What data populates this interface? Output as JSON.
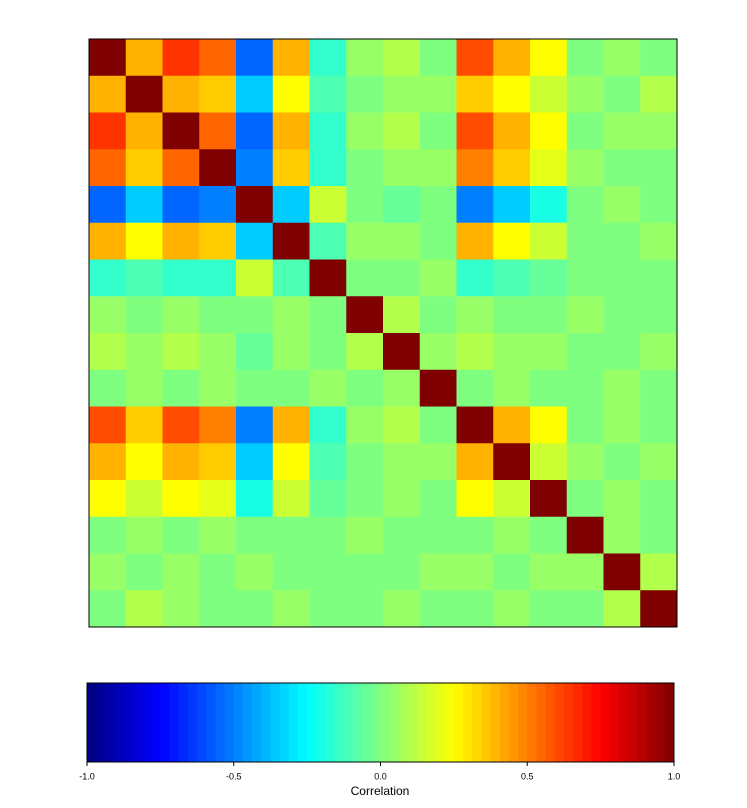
{
  "chart_data": {
    "type": "heatmap",
    "colormap": [
      "#00007f",
      "#0000ff",
      "#007fff",
      "#00ffff",
      "#7fff7f",
      "#ffff00",
      "#ff7f00",
      "#ff0000",
      "#7f0000"
    ],
    "zlim": [
      -1,
      1
    ],
    "colorbar_label": "Correlation",
    "colorbar_ticks": [
      {
        "value": -1,
        "label": "-1.0"
      },
      {
        "value": -0.5,
        "label": "-0.5"
      },
      {
        "value": 0,
        "label": "0.0"
      },
      {
        "value": 0.5,
        "label": "0.5"
      },
      {
        "value": 1,
        "label": "1.0"
      }
    ],
    "values": [
      [
        1,
        0.4,
        0.65,
        0.55,
        -0.55,
        0.4,
        -0.15,
        0.05,
        0.1,
        0,
        0.6,
        0.4,
        0.25,
        0,
        0.05,
        0
      ],
      [
        0.4,
        1,
        0.4,
        0.35,
        -0.35,
        0.25,
        -0.1,
        0,
        0.05,
        0.05,
        0.35,
        0.25,
        0.15,
        0.05,
        0,
        0.1
      ],
      [
        0.65,
        0.4,
        1,
        0.55,
        -0.55,
        0.4,
        -0.15,
        0.05,
        0.1,
        0,
        0.6,
        0.4,
        0.25,
        0,
        0.05,
        0.05
      ],
      [
        0.55,
        0.35,
        0.55,
        1,
        -0.5,
        0.35,
        -0.15,
        0,
        0.05,
        0.05,
        0.5,
        0.35,
        0.2,
        0.05,
        0,
        0
      ],
      [
        -0.55,
        -0.35,
        -0.55,
        -0.5,
        1,
        -0.35,
        0.15,
        0,
        -0.05,
        0,
        -0.5,
        -0.35,
        -0.2,
        0,
        0.05,
        0
      ],
      [
        0.4,
        0.25,
        0.4,
        0.35,
        -0.35,
        1,
        -0.1,
        0.05,
        0.05,
        0,
        0.4,
        0.25,
        0.15,
        0,
        0,
        0.05
      ],
      [
        -0.15,
        -0.1,
        -0.15,
        -0.15,
        0.15,
        -0.1,
        1,
        0,
        0,
        0.05,
        -0.15,
        -0.1,
        -0.05,
        0,
        0,
        0
      ],
      [
        0.05,
        0,
        0.05,
        0,
        0,
        0.05,
        0,
        1,
        0.1,
        0,
        0.05,
        0,
        0,
        0.05,
        0,
        0
      ],
      [
        0.1,
        0.05,
        0.1,
        0.05,
        -0.05,
        0.05,
        0,
        0.1,
        1,
        0.05,
        0.1,
        0.05,
        0.05,
        0,
        0,
        0.05
      ],
      [
        0,
        0.05,
        0,
        0.05,
        0,
        0,
        0.05,
        0,
        0.05,
        1,
        0,
        0.05,
        0,
        0,
        0.05,
        0
      ],
      [
        0.6,
        0.35,
        0.6,
        0.5,
        -0.5,
        0.4,
        -0.15,
        0.05,
        0.1,
        0,
        1,
        0.4,
        0.25,
        0,
        0.05,
        0
      ],
      [
        0.4,
        0.25,
        0.4,
        0.35,
        -0.35,
        0.25,
        -0.1,
        0,
        0.05,
        0.05,
        0.4,
        1,
        0.15,
        0.05,
        0,
        0.05
      ],
      [
        0.25,
        0.15,
        0.25,
        0.2,
        -0.2,
        0.15,
        -0.05,
        0,
        0.05,
        0,
        0.25,
        0.15,
        1,
        0,
        0.05,
        0
      ],
      [
        0,
        0.05,
        0,
        0.05,
        0,
        0,
        0,
        0.05,
        0,
        0,
        0,
        0.05,
        0,
        1,
        0.05,
        0
      ],
      [
        0.05,
        0,
        0.05,
        0,
        0.05,
        0,
        0,
        0,
        0,
        0.05,
        0.05,
        0,
        0.05,
        0.05,
        1,
        0.1
      ],
      [
        0,
        0.1,
        0.05,
        0,
        0,
        0.05,
        0,
        0,
        0.05,
        0,
        0,
        0.05,
        0,
        0,
        0.1,
        1
      ]
    ]
  }
}
